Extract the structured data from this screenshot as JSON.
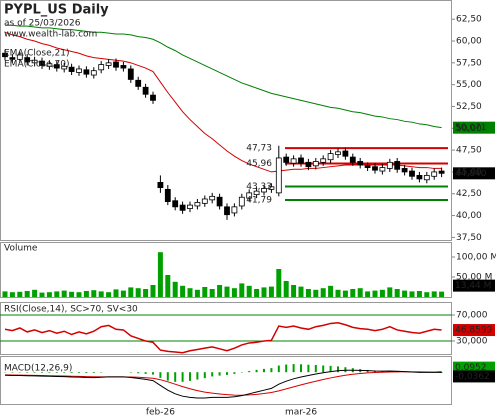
{
  "chart_data": [
    {
      "type": "candlestick",
      "title": "PYPL_US Daily",
      "subtitle": "as of 25/03/2026",
      "watermark": "www.wealth-lab.com",
      "categories": [
        null,
        null,
        null,
        null,
        null,
        null,
        null,
        null,
        null,
        null,
        null,
        null,
        null,
        null,
        null,
        null,
        null,
        null,
        null,
        null,
        null,
        "feb-26",
        null,
        null,
        null,
        null,
        null,
        null,
        null,
        null,
        null,
        null,
        null,
        null,
        null,
        null,
        null,
        null,
        null,
        null,
        "mar-26",
        null,
        null,
        null,
        null,
        null,
        null,
        null,
        null,
        null,
        null,
        null,
        null,
        null,
        null,
        null,
        null,
        null,
        null,
        null
      ],
      "open": [
        58.6,
        58.1,
        57.9,
        58.1,
        57.5,
        57.7,
        57.1,
        57.3,
        56.8,
        57.0,
        56.4,
        56.7,
        56.1,
        56.7,
        57.2,
        57.6,
        57.2,
        56.8,
        55.5,
        54.7,
        53.8,
        43.8,
        43.0,
        41.7,
        41.2,
        40.8,
        41.1,
        41.4,
        41.8,
        42.1,
        41.0,
        40.3,
        41.1,
        42.0,
        42.4,
        42.7,
        43.0,
        42.6,
        46.7,
        46.0,
        46.6,
        46.1,
        45.7,
        46.1,
        46.4,
        47.0,
        47.4,
        46.7,
        46.2,
        45.7,
        45.6,
        45.1,
        45.4,
        46.2,
        45.4,
        45.1,
        44.6,
        44.1,
        44.5,
        45.1
      ],
      "high": [
        59.0,
        58.5,
        58.8,
        58.5,
        58.2,
        58.1,
        57.8,
        57.7,
        57.5,
        57.4,
        57.2,
        57.1,
        57.0,
        57.7,
        57.9,
        58.0,
        57.6,
        57.2,
        55.9,
        55.1,
        54.2,
        44.6,
        43.5,
        42.1,
        41.6,
        41.6,
        41.9,
        42.3,
        42.6,
        42.5,
        41.4,
        41.4,
        42.5,
        43.0,
        43.2,
        43.5,
        43.7,
        48.0,
        47.1,
        46.9,
        47.0,
        46.5,
        46.6,
        46.9,
        47.5,
        47.7,
        47.8,
        47.1,
        46.6,
        46.1,
        46.0,
        45.9,
        46.5,
        46.6,
        45.8,
        45.5,
        45.0,
        45.0,
        45.4,
        45.5
      ],
      "low": [
        57.8,
        57.5,
        57.5,
        57.2,
        57.1,
        56.8,
        56.7,
        56.5,
        56.4,
        56.1,
        56.0,
        55.8,
        55.7,
        56.3,
        56.8,
        56.6,
        56.5,
        55.2,
        54.4,
        53.5,
        52.8,
        42.6,
        41.2,
        40.6,
        40.2,
        40.4,
        40.7,
        41.0,
        41.4,
        40.7,
        39.5,
        39.9,
        40.7,
        41.6,
        42.0,
        42.3,
        42.6,
        42.2,
        45.7,
        45.6,
        45.6,
        45.2,
        45.3,
        45.7,
        46.0,
        46.6,
        46.4,
        45.7,
        45.4,
        45.1,
        44.8,
        44.7,
        45.0,
        44.9,
        44.6,
        44.1,
        43.8,
        43.7,
        44.1,
        44.4
      ],
      "close": [
        58.2,
        57.9,
        58.4,
        57.6,
        57.8,
        57.2,
        57.4,
        56.9,
        57.1,
        56.5,
        56.8,
        56.2,
        56.6,
        57.3,
        57.5,
        57.0,
        56.9,
        55.6,
        54.8,
        53.9,
        53.2,
        43.2,
        41.6,
        41.0,
        40.6,
        41.2,
        41.5,
        41.9,
        42.2,
        41.1,
        40.1,
        41.0,
        42.1,
        42.6,
        42.8,
        43.1,
        43.3,
        46.6,
        46.1,
        46.5,
        46.0,
        45.6,
        46.2,
        46.5,
        47.1,
        47.3,
        46.8,
        46.1,
        45.8,
        45.5,
        45.2,
        45.5,
        46.1,
        45.3,
        45.0,
        44.5,
        44.2,
        44.6,
        45.0,
        44.84
      ],
      "last_value_label": "44,840",
      "up_color": "#ffffff",
      "down_color": "#000000",
      "series": [
        {
          "name": "EMA(Close,21)",
          "color": "#d40000",
          "values": [
            61.0,
            60.7,
            60.5,
            60.2,
            60.0,
            59.7,
            59.5,
            59.2,
            59.0,
            58.8,
            58.6,
            58.3,
            58.1,
            58.0,
            57.9,
            57.8,
            57.7,
            57.5,
            57.2,
            56.9,
            56.5,
            55.3,
            54.1,
            53.0,
            51.9,
            51.0,
            50.2,
            49.4,
            48.8,
            48.1,
            47.4,
            46.8,
            46.3,
            45.9,
            45.6,
            45.3,
            45.0,
            45.1,
            45.2,
            45.3,
            45.3,
            45.4,
            45.4,
            45.5,
            45.6,
            45.7,
            45.8,
            45.8,
            45.8,
            45.8,
            45.8,
            45.8,
            45.8,
            45.8,
            45.7,
            45.6,
            45.5,
            45.5,
            45.4,
            45.4
          ]
        },
        {
          "name": "EMA(Close,70)",
          "color": "#008000",
          "last_value_label": "50,071",
          "values": [
            61.8,
            61.8,
            61.7,
            61.7,
            61.6,
            61.5,
            61.5,
            61.4,
            61.3,
            61.3,
            61.2,
            61.1,
            61.0,
            61.0,
            60.9,
            60.8,
            60.8,
            60.7,
            60.5,
            60.4,
            60.2,
            59.8,
            59.3,
            58.9,
            58.4,
            58.0,
            57.6,
            57.2,
            56.8,
            56.4,
            56.0,
            55.6,
            55.2,
            54.9,
            54.6,
            54.3,
            54.0,
            53.8,
            53.6,
            53.4,
            53.2,
            53.0,
            52.8,
            52.6,
            52.4,
            52.3,
            52.1,
            51.9,
            51.8,
            51.6,
            51.4,
            51.3,
            51.1,
            51.0,
            50.8,
            50.7,
            50.5,
            50.4,
            50.2,
            50.071
          ]
        }
      ],
      "levels": [
        {
          "value": 47.73,
          "label": "47,73",
          "color": "#d40000"
        },
        {
          "value": 45.96,
          "label": "45,96",
          "color": "#d40000"
        },
        {
          "value": 43.33,
          "label": "43,33",
          "color": "#008000"
        },
        {
          "value": 41.79,
          "label": "41,79",
          "color": "#008000"
        }
      ],
      "ylim": [
        37.2,
        64.7
      ],
      "yticks": [
        {
          "value": 37.5,
          "label": "37,50"
        },
        {
          "value": 40,
          "label": "40,00"
        },
        {
          "value": 42.5,
          "label": "42,50"
        },
        {
          "value": 45,
          "label": "45,00"
        },
        {
          "value": 47.5,
          "label": "47,50"
        },
        {
          "value": 50,
          "label": "50,00"
        },
        {
          "value": 52.5,
          "label": "52,50"
        },
        {
          "value": 55,
          "label": "55,00"
        },
        {
          "value": 57.5,
          "label": "57,50"
        },
        {
          "value": 60,
          "label": "60,00"
        },
        {
          "value": 62.5,
          "label": "62,50"
        }
      ]
    },
    {
      "type": "bar",
      "title": "Volume",
      "color": "#00a000",
      "values": [
        14,
        12,
        13,
        15,
        18,
        11,
        12,
        14,
        16,
        13,
        12,
        15,
        17,
        14,
        12,
        19,
        16,
        24,
        22,
        20,
        30,
        112,
        55,
        38,
        28,
        22,
        18,
        25,
        20,
        30,
        26,
        22,
        34,
        28,
        20,
        24,
        26,
        70,
        40,
        30,
        26,
        20,
        18,
        22,
        28,
        18,
        16,
        20,
        22,
        14,
        16,
        18,
        24,
        20,
        16,
        14,
        15,
        12,
        14,
        13.44
      ],
      "last_value_label": "13,44 M",
      "ylim": [
        0,
        137.5
      ],
      "yticks": [
        {
          "value": 50,
          "label": "50,00 M"
        },
        {
          "value": 100,
          "label": "100,00 M"
        }
      ]
    },
    {
      "type": "line",
      "title": "RSI(Close,14), SC>70, SV<30",
      "color": "#d40000",
      "band_color": "#008000",
      "values": [
        48,
        46,
        50,
        44,
        47,
        43,
        46,
        42,
        45,
        40,
        44,
        41,
        45,
        52,
        54,
        48,
        47,
        38,
        34,
        30,
        28,
        16,
        14,
        13,
        12,
        15,
        17,
        19,
        21,
        18,
        15,
        19,
        24,
        27,
        28,
        30,
        31,
        53,
        51,
        53,
        50,
        48,
        52,
        54,
        57,
        58,
        55,
        51,
        49,
        48,
        46,
        48,
        52,
        47,
        45,
        43,
        42,
        45,
        48,
        46.8599
      ],
      "last_value_label": "46,8599",
      "ylim": [
        10,
        90
      ],
      "yticks": [
        {
          "value": 30,
          "label": "30,000"
        },
        {
          "value": 70,
          "label": "70,000"
        }
      ]
    },
    {
      "type": "macd",
      "title": "MACD(12,26,9)",
      "color": "#000000",
      "values": [
        -0.5,
        -0.55,
        -0.55,
        -0.6,
        -0.62,
        -0.66,
        -0.68,
        -0.72,
        -0.74,
        -0.8,
        -0.82,
        -0.88,
        -0.9,
        -0.85,
        -0.78,
        -0.78,
        -0.78,
        -0.88,
        -1.02,
        -1.2,
        -1.4,
        -2.2,
        -3.0,
        -3.6,
        -4.0,
        -4.2,
        -4.3,
        -4.3,
        -4.2,
        -4.2,
        -4.2,
        -4.1,
        -3.9,
        -3.6,
        -3.3,
        -3.0,
        -2.7,
        -2.0,
        -1.5,
        -1.1,
        -0.8,
        -0.55,
        -0.3,
        -0.1,
        0.1,
        0.25,
        0.32,
        0.33,
        0.3,
        0.26,
        0.2,
        0.18,
        0.2,
        0.15,
        0.1,
        0.04,
        -0.02,
        -0.03,
        -0.03,
        -0.0362
      ],
      "last_value_label": "-0,0362",
      "signal": {
        "color": "#d40000",
        "last_value_label": "0,0952",
        "values": [
          -0.45,
          -0.47,
          -0.486,
          -0.509,
          -0.531,
          -0.557,
          -0.582,
          -0.61,
          -0.636,
          -0.669,
          -0.699,
          -0.735,
          -0.768,
          -0.784,
          -0.783,
          -0.782,
          -0.782,
          -0.801,
          -0.845,
          -0.916,
          -1.013,
          -1.25,
          -1.6,
          -2.0,
          -2.4,
          -2.76,
          -3.068,
          -3.314,
          -3.492,
          -3.633,
          -3.747,
          -3.817,
          -3.834,
          -3.787,
          -3.69,
          -3.552,
          -3.381,
          -3.105,
          -2.784,
          -2.447,
          -2.118,
          -1.804,
          -1.503,
          -1.223,
          -0.958,
          -0.717,
          -0.509,
          -0.341,
          -0.213,
          -0.118,
          -0.054,
          -0.007,
          0.034,
          0.057,
          0.066,
          0.061,
          0.045,
          0.03,
          0.018,
          0.0952
        ]
      },
      "histogram": {
        "color": "#00a000",
        "values": [
          -0.05,
          -0.08,
          -0.06,
          -0.09,
          -0.09,
          -0.1,
          -0.1,
          -0.11,
          -0.1,
          -0.13,
          -0.12,
          -0.15,
          -0.13,
          -0.07,
          0,
          0,
          0,
          -0.08,
          -0.18,
          -0.28,
          -0.39,
          -0.95,
          -1.4,
          -1.6,
          -1.6,
          -1.44,
          -1.23,
          -0.99,
          -0.71,
          -0.57,
          -0.45,
          -0.28,
          -0.07,
          0.19,
          0.39,
          0.55,
          0.68,
          1.11,
          1.28,
          1.35,
          1.32,
          1.25,
          1.2,
          1.12,
          1.06,
          0.97,
          0.83,
          0.67,
          0.51,
          0.38,
          0.25,
          0.19,
          0.17,
          0.09,
          0.03,
          -0.02,
          -0.07,
          -0.06,
          -0.05,
          -0.13
        ]
      },
      "ylim": [
        -5.3,
        2.7
      ]
    }
  ]
}
